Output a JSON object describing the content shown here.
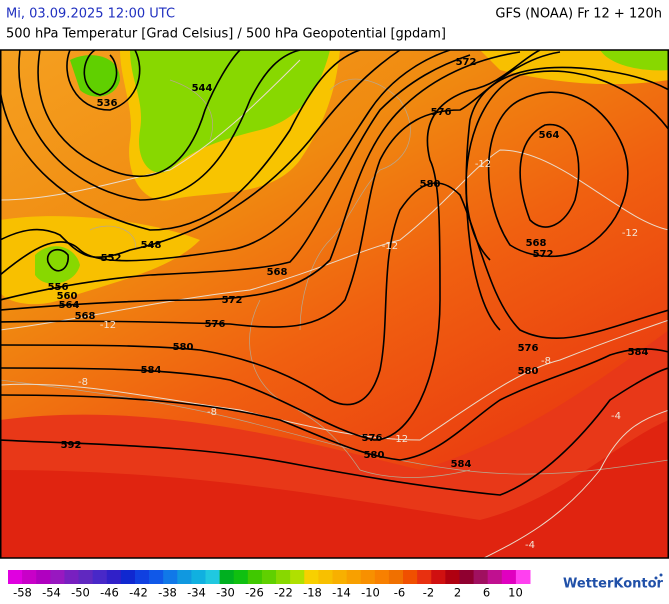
{
  "header": {
    "datetime": "Mi, 03.09.2025 12:00 UTC",
    "model": "GFS (NOAA) Fr 12 + 120h",
    "subtitle": "500 hPa Temperatur [Grad Celsius] / 500 hPa Geopotential [gpdam]"
  },
  "map": {
    "geopotential_labels": [
      544,
      536,
      548,
      552,
      556,
      560,
      564,
      568,
      572,
      576,
      580,
      584,
      592,
      568,
      572,
      576,
      580,
      564,
      568,
      572,
      576,
      580,
      584,
      576,
      580,
      584
    ],
    "temperature_labels": [
      -12,
      -8,
      -8,
      -12,
      -12,
      -8,
      -4,
      -12,
      -4,
      -12
    ]
  },
  "colorbar": {
    "range": [
      -60,
      12
    ],
    "ticks": [
      -58,
      -54,
      -50,
      -46,
      -42,
      -38,
      -34,
      -30,
      -26,
      -22,
      -18,
      -14,
      -10,
      -6,
      -2,
      2,
      6,
      10
    ],
    "colors": [
      "#e000e0",
      "#c800c8",
      "#b000c0",
      "#9818c0",
      "#7820c0",
      "#6028c0",
      "#4828c8",
      "#3020c8",
      "#1028d0",
      "#1040e0",
      "#1058e8",
      "#1078e8",
      "#1098e0",
      "#10b0e0",
      "#20c8e0",
      "#00b020",
      "#10c010",
      "#40c800",
      "#60d000",
      "#88d800",
      "#b0e000",
      "#f8d000",
      "#f8c000",
      "#f8b000",
      "#f8a000",
      "#f89000",
      "#f88000",
      "#f07000",
      "#f05000",
      "#e83010",
      "#d01010",
      "#b00010",
      "#900030",
      "#a01060",
      "#c01090",
      "#e000c0",
      "#ff40f0"
    ]
  },
  "logo": "WetterKontor"
}
